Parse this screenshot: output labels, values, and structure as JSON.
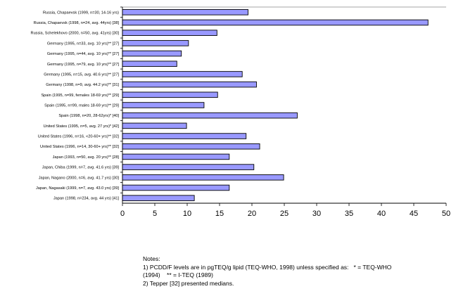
{
  "chart_data": {
    "type": "bar",
    "orientation": "horizontal",
    "title": "",
    "xlabel": "",
    "ylabel": "",
    "xlim": [
      0,
      50
    ],
    "xticks": [
      0,
      5,
      10,
      15,
      20,
      25,
      30,
      35,
      40,
      45,
      50
    ],
    "grid": false,
    "legend": "none",
    "bar_color": "#9999ff",
    "categories": [
      "Russia, Chapaevsk (1999, n=30, 14-16 yrs)",
      "Russia, Chapaevsk (1998, n=24, avg. 44yrs) [38]",
      "Russia, Schelekhovo (2000, n=50, avg. 41yrs) [30]",
      "Germany (1995, n=33, avg. 10 yrs)** [27]",
      "Germany (1995, n=44, avg. 10 yrs)** [27]",
      "Germany (1995, n=79, avg. 10 yrs)** [27]",
      "Germany (1995, n=15, avg. 40.6 yrs)** [27]",
      "Germany (1998, n=9, avg. 44.2 yrs)** [31]",
      "Spain (1995, n=99, females 18-69 yrs)** [29]",
      "Spain (1995, n=99, males 18-69 yrs)** [29]",
      "Spain (1998, n=20, 28-62yrs)* [40]",
      "United States (1995, n=5, avg. 27 yrs)* [42]",
      "United States (1996, n=16, <20-60+ yrs)** [32]",
      "United States (1996, n=14, 30-60+ yrs)** [32]",
      "Japan (1993, n=50, avg. 20 yrs)** [28]",
      "Japan, Chiba (1999, n=7, avg. 41.6 yrs) [39]",
      "Japan, Nagano (2000, n=6, avg. 41.7 yrs) [30]",
      "Japan, Nagasaki (1999, n=7, avg. 43.0 yrs) [39]",
      "Japan (1998, n=234, avg. 44 yrs) [41]"
    ],
    "values": [
      19.4,
      47.2,
      14.6,
      10.2,
      9.1,
      8.4,
      18.5,
      20.7,
      14.7,
      12.6,
      27.0,
      9.9,
      19.1,
      21.2,
      16.5,
      20.3,
      24.9,
      16.5,
      11.1
    ]
  },
  "notes": {
    "line1": "Notes:",
    "line2": "1) PCDD/F levels are in pgTEQ/g lipid (TEQ-WHO, 1998) unless specified as:   * = TEQ-WHO",
    "line3": "(1994)    ** = I-TEQ (1989)",
    "line4": "2) Tepper [32] presented medians."
  }
}
